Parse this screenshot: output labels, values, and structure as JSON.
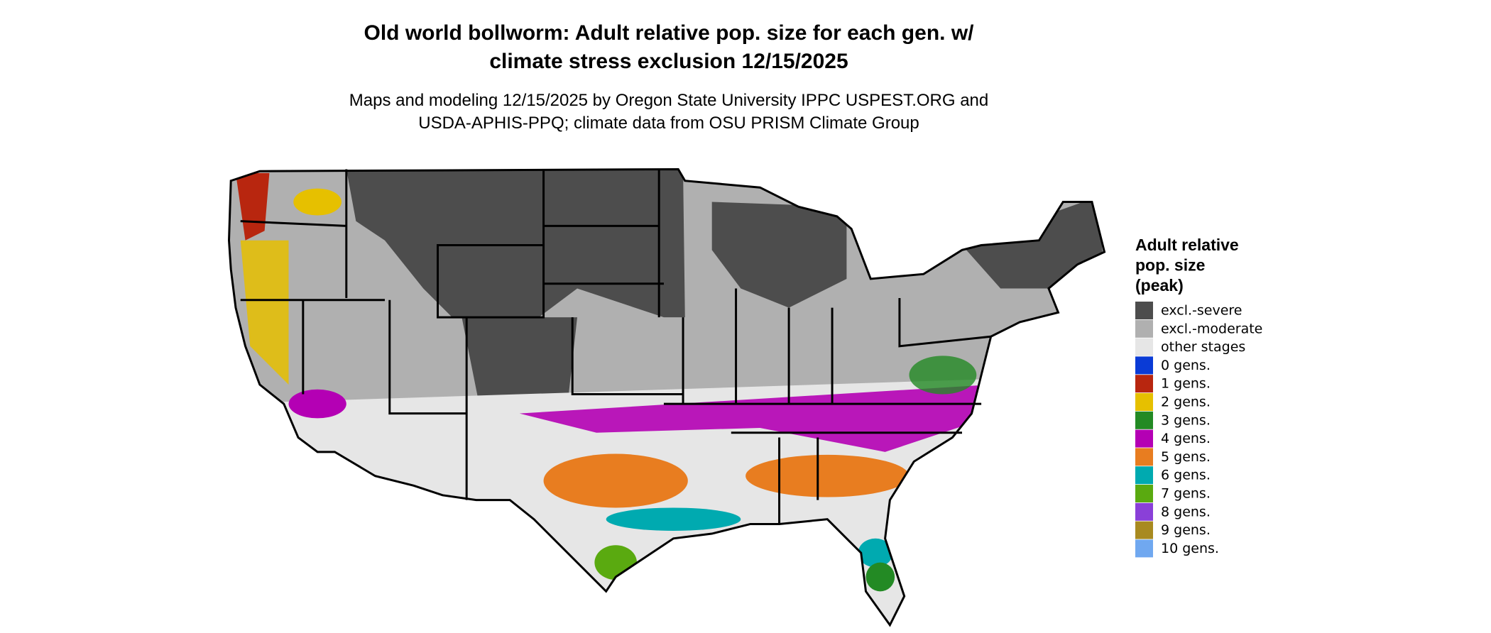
{
  "header": {
    "title": [
      "Old world bollworm: Adult relative pop. size for each gen. w/",
      "climate stress exclusion 12/15/2025"
    ],
    "subtitle": [
      "Maps and modeling 12/15/2025 by Oregon State University IPPC USPEST.ORG and",
      "USDA-APHIS-PPQ; climate data from OSU PRISM Climate Group"
    ]
  },
  "legend": {
    "title": [
      "Adult relative",
      "pop. size",
      "(peak)"
    ],
    "items": [
      {
        "label": "excl.-severe",
        "color": "#4d4d4d"
      },
      {
        "label": "excl.-moderate",
        "color": "#b0b0b0"
      },
      {
        "label": "other stages",
        "color": "#e6e6e6"
      },
      {
        "label": "0 gens.",
        "color": "#0a3bd6"
      },
      {
        "label": "1 gens.",
        "color": "#b8260f"
      },
      {
        "label": "2 gens.",
        "color": "#e6c000"
      },
      {
        "label": "3 gens.",
        "color": "#238a24"
      },
      {
        "label": "4 gens.",
        "color": "#b400b4"
      },
      {
        "label": "5 gens.",
        "color": "#e87d20"
      },
      {
        "label": "6 gens.",
        "color": "#00aab0"
      },
      {
        "label": "7 gens.",
        "color": "#5aaa10"
      },
      {
        "label": "8 gens.",
        "color": "#8a40d8"
      },
      {
        "label": "9 gens.",
        "color": "#a88a20"
      },
      {
        "label": "10 gens.",
        "color": "#70a8f0"
      }
    ]
  }
}
